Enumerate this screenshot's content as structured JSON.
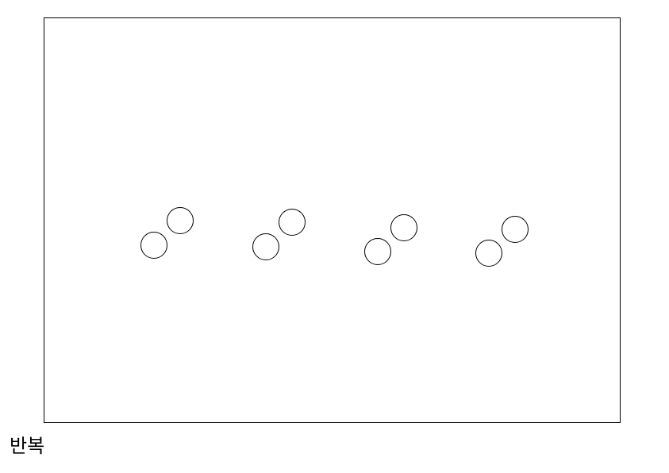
{
  "caption": "반복",
  "colors": {
    "stroke": "#000000",
    "background": "#ffffff"
  },
  "icons": {
    "circle": "circle-icon"
  },
  "pattern": {
    "pair_count": 4,
    "circles_per_pair": 2
  }
}
